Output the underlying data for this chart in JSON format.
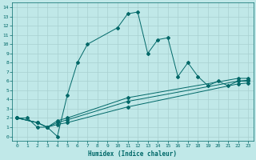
{
  "xlabel": "Humidex (Indice chaleur)",
  "bg_color": "#c0e8e8",
  "grid_color": "#a8d0d0",
  "line_color": "#006868",
  "xlim": [
    -0.5,
    23.5
  ],
  "ylim": [
    -0.5,
    14.5
  ],
  "xticks": [
    0,
    1,
    2,
    3,
    4,
    5,
    6,
    7,
    8,
    9,
    10,
    11,
    12,
    13,
    14,
    15,
    16,
    17,
    18,
    19,
    20,
    21,
    22,
    23
  ],
  "yticks": [
    0,
    1,
    2,
    3,
    4,
    5,
    6,
    7,
    8,
    9,
    10,
    11,
    12,
    13,
    14
  ],
  "curve1_x": [
    0,
    1,
    2,
    3,
    4,
    5,
    6,
    7,
    10,
    11,
    12,
    13,
    14,
    15,
    16,
    17,
    18,
    19,
    20,
    21,
    22,
    23
  ],
  "curve1_y": [
    2,
    2,
    1,
    1,
    0,
    4.5,
    8,
    10,
    11.8,
    13.3,
    13.5,
    9,
    10.5,
    10.7,
    6.5,
    8,
    6.5,
    5.5,
    6,
    5.5,
    6,
    6
  ],
  "curve2_x": [
    0,
    2,
    3,
    4,
    5,
    11,
    22,
    23
  ],
  "curve2_y": [
    2,
    1.5,
    1,
    1.3,
    1.5,
    3.2,
    5.7,
    5.8
  ],
  "curve3_x": [
    0,
    2,
    3,
    4,
    5,
    11,
    22,
    23
  ],
  "curve3_y": [
    2,
    1.5,
    1,
    1.5,
    1.8,
    3.8,
    6.0,
    6.1
  ],
  "curve4_x": [
    0,
    2,
    3,
    4,
    5,
    11,
    22,
    23
  ],
  "curve4_y": [
    2,
    1.5,
    1,
    1.7,
    2.0,
    4.2,
    6.3,
    6.3
  ]
}
